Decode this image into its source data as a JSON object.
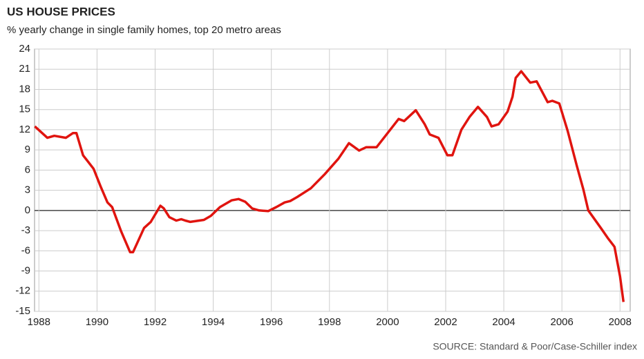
{
  "chart_data": {
    "type": "line",
    "title": "US HOUSE PRICES",
    "subtitle": "% yearly change in single family homes, top 20 metro areas",
    "source": "SOURCE: Standard & Poor/Case-Schiller index",
    "xlim": [
      1987.85,
      2008.35
    ],
    "xticks": [
      1988,
      1990,
      1992,
      1994,
      1996,
      1998,
      2000,
      2002,
      2004,
      2006,
      2008
    ],
    "ylim": [
      -15,
      24
    ],
    "yticks": [
      -15,
      -12,
      -9,
      -6,
      -3,
      0,
      3,
      6,
      9,
      12,
      15,
      18,
      21,
      24
    ],
    "grid": true,
    "series": [
      {
        "color": "#e0140f",
        "x": [
          1987.86,
          1988.29,
          1988.53,
          1988.93,
          1989.17,
          1989.29,
          1989.52,
          1989.88,
          1990.12,
          1990.36,
          1990.52,
          1990.83,
          1991.14,
          1991.24,
          1991.62,
          1991.85,
          1992.18,
          1992.3,
          1992.49,
          1992.73,
          1992.9,
          1993.04,
          1993.21,
          1993.68,
          1993.92,
          1994.23,
          1994.63,
          1994.87,
          1995.1,
          1995.34,
          1995.58,
          1995.89,
          1996.17,
          1996.46,
          1996.65,
          1996.89,
          1997.36,
          1997.84,
          1998.31,
          1998.67,
          1999.02,
          1999.26,
          1999.62,
          2000.02,
          2000.38,
          2000.57,
          2000.97,
          2001.28,
          2001.45,
          2001.75,
          2002.06,
          2002.23,
          2002.54,
          2002.82,
          2003.11,
          2003.42,
          2003.58,
          2003.82,
          2004.13,
          2004.3,
          2004.41,
          2004.6,
          2004.91,
          2005.13,
          2005.51,
          2005.67,
          2005.91,
          2006.2,
          2006.51,
          2006.74,
          2006.91,
          2007.34,
          2007.58,
          2007.81,
          2008.0,
          2008.12
        ],
        "values": [
          12.5,
          10.8,
          11.1,
          10.8,
          11.5,
          11.5,
          8.2,
          6.2,
          3.6,
          1.2,
          0.5,
          -3.1,
          -6.2,
          -6.2,
          -2.6,
          -1.7,
          0.7,
          0.3,
          -1.0,
          -1.5,
          -1.3,
          -1.5,
          -1.7,
          -1.4,
          -0.8,
          0.5,
          1.5,
          1.7,
          1.3,
          0.3,
          0,
          -0.1,
          0.5,
          1.2,
          1.4,
          2.0,
          3.3,
          5.4,
          7.7,
          10.0,
          8.9,
          9.4,
          9.4,
          11.6,
          13.6,
          13.3,
          14.9,
          12.8,
          11.3,
          10.8,
          8.2,
          8.2,
          12.0,
          13.9,
          15.4,
          13.9,
          12.5,
          12.8,
          14.7,
          16.9,
          19.7,
          20.7,
          19.0,
          19.2,
          16.1,
          16.3,
          15.9,
          11.8,
          6.7,
          3.1,
          0,
          -2.6,
          -4.1,
          -5.4,
          -9.8,
          -13.6
        ]
      }
    ]
  }
}
